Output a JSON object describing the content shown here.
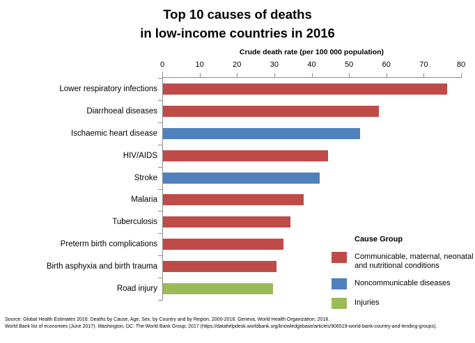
{
  "title": {
    "line1": "Top 10 causes of deaths",
    "line2": "in low-income countries in 2016"
  },
  "chart_data": {
    "type": "bar",
    "orientation": "horizontal",
    "title": "Top 10 causes of deaths in low-income countries in 2016",
    "xlabel": "Crude death rate (per 100 000 population)",
    "ylabel": "",
    "xlim": [
      0,
      80
    ],
    "xticks": [
      0,
      10,
      20,
      30,
      40,
      50,
      60,
      70,
      80
    ],
    "grid": false,
    "axis_position": "top",
    "categories": [
      "Lower respiratory infections",
      "Diarrhoeal diseases",
      "Ischaemic heart disease",
      "HIV/AIDS",
      "Stroke",
      "Malaria",
      "Tuberculosis",
      "Preterm birth complications",
      "Birth asphyxia and birth trauma",
      "Road injury"
    ],
    "values": [
      76.1,
      57.9,
      52.8,
      44.2,
      42.0,
      37.7,
      34.2,
      32.2,
      30.4,
      29.4
    ],
    "groups": [
      "communicable",
      "communicable",
      "noncommunicable",
      "communicable",
      "noncommunicable",
      "communicable",
      "communicable",
      "communicable",
      "communicable",
      "injuries"
    ],
    "group_colors": {
      "communicable": "#BE4B48",
      "noncommunicable": "#4F81BD",
      "injuries": "#9BBB59"
    },
    "legend": {
      "title": "Cause Group",
      "position": "right-bottom",
      "items": [
        {
          "label": "Communicable, maternal, neonatal and nutritional conditions",
          "group": "communicable",
          "color": "#BE4B48"
        },
        {
          "label": "Noncommunicable diseases",
          "group": "noncommunicable",
          "color": "#4F81BD"
        },
        {
          "label": "Injuries",
          "group": "injuries",
          "color": "#9BBB59"
        }
      ]
    },
    "axis_color": "#8c8c8c"
  },
  "source": {
    "line1": "Source: Global Health Estimates 2016: Deaths by Cause, Age, Sex, by Country and by Region, 2000-2016. Geneva, World Health Organization; 2018.",
    "line2": "World Bank list of economies (June 2017). Washington, DC: The World Bank Group; 2017 (https://datahelpdesk.worldbank.org/knowledgebase/articles/906519-world-bank-country-and-lending-groups)."
  }
}
